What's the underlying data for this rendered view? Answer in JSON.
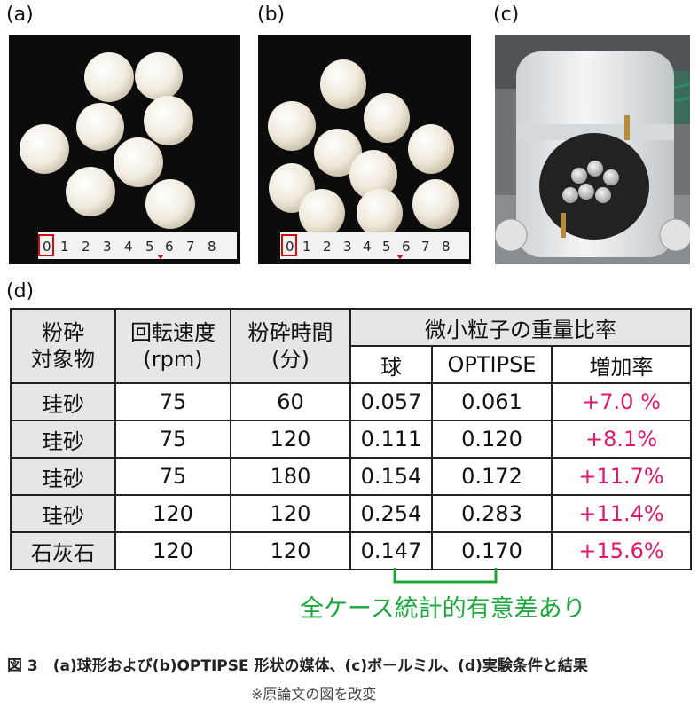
{
  "panels": {
    "a_label": "(a)",
    "b_label": "(b)",
    "c_label": "(c)",
    "d_label": "(d)",
    "ruler_ticks": [
      "0",
      "1",
      "2",
      "3",
      "4",
      "5",
      "6",
      "7",
      "8"
    ]
  },
  "table": {
    "headers": {
      "object": "粉砕\n対象物",
      "speed": "回転速度\n(rpm)",
      "time": "粉砕時間\n(分)",
      "ratio": "微小粒子の重量比率",
      "sphere": "球",
      "optipse": "OPTIPSE",
      "increase": "増加率"
    },
    "rows": [
      {
        "object": "珪砂",
        "speed": "75",
        "time": "60",
        "sphere": "0.057",
        "optipse": "0.061",
        "increase": "+7.0 %"
      },
      {
        "object": "珪砂",
        "speed": "75",
        "time": "120",
        "sphere": "0.111",
        "optipse": "0.120",
        "increase": "+8.1%"
      },
      {
        "object": "珪砂",
        "speed": "75",
        "time": "180",
        "sphere": "0.154",
        "optipse": "0.172",
        "increase": "+11.7%"
      },
      {
        "object": "珪砂",
        "speed": "120",
        "time": "120",
        "sphere": "0.254",
        "optipse": "0.283",
        "increase": "+11.4%"
      },
      {
        "object": "石灰石",
        "speed": "120",
        "time": "120",
        "sphere": "0.147",
        "optipse": "0.170",
        "increase": "+15.6%"
      }
    ]
  },
  "note": "全ケース統計的有意差あり",
  "caption": "図 3　(a)球形および(b)OPTIPSE 形状の媒体、(c)ボールミル、(d)実験条件と結果",
  "source": "※原論文の図を改変",
  "colors": {
    "increase": "#e0186c",
    "note": "#1aa83a",
    "header_bg": "#e6e6e6"
  }
}
